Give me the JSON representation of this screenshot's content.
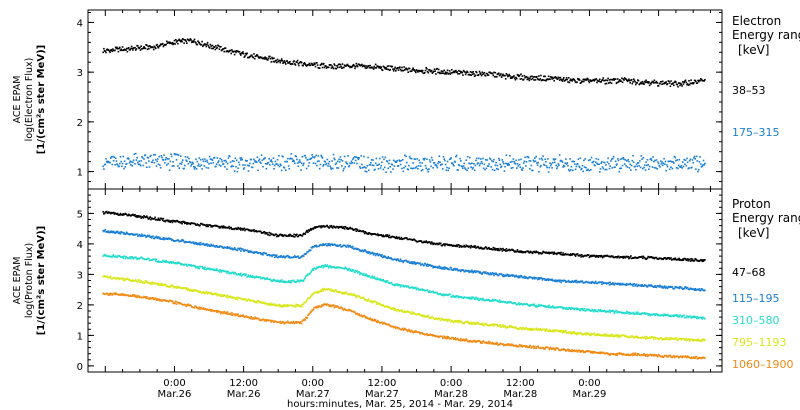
{
  "chart_data": [
    {
      "type": "scatter",
      "panel": "electron",
      "ylabel_lines": [
        "ACE EPAM",
        "log(Electron Flux)",
        "[1/(cm²s ster MeV)]"
      ],
      "legend_title_lines": [
        "Electron",
        "Energy range"
      ],
      "legend_unit": "[keV]",
      "ylim": [
        0.65,
        4.25
      ],
      "yticks": [
        "1",
        "2",
        "3",
        "4"
      ],
      "x_range_hours": [
        -15,
        95
      ],
      "series": [
        {
          "name": "38–53",
          "color": "#000000",
          "points": [
            [
              -12,
              3.45
            ],
            [
              -8,
              3.48
            ],
            [
              -4,
              3.52
            ],
            [
              0,
              3.62
            ],
            [
              3,
              3.65
            ],
            [
              6,
              3.55
            ],
            [
              10,
              3.42
            ],
            [
              14,
              3.32
            ],
            [
              18,
              3.25
            ],
            [
              22,
              3.18
            ],
            [
              26,
              3.13
            ],
            [
              30,
              3.14
            ],
            [
              34,
              3.12
            ],
            [
              38,
              3.08
            ],
            [
              42,
              3.05
            ],
            [
              46,
              3.03
            ],
            [
              50,
              3.0
            ],
            [
              54,
              2.98
            ],
            [
              58,
              2.93
            ],
            [
              62,
              2.9
            ],
            [
              66,
              2.88
            ],
            [
              70,
              2.84
            ],
            [
              74,
              2.84
            ],
            [
              78,
              2.85
            ],
            [
              80,
              2.82
            ],
            [
              84,
              2.8
            ],
            [
              88,
              2.78
            ],
            [
              90,
              2.82
            ],
            [
              92,
              2.85
            ]
          ]
        },
        {
          "name": "175–315",
          "color": "#1a7fd4",
          "points": [
            [
              -12,
              1.2
            ],
            [
              0,
              1.22
            ],
            [
              12,
              1.18
            ],
            [
              24,
              1.2
            ],
            [
              36,
              1.17
            ],
            [
              48,
              1.18
            ],
            [
              60,
              1.17
            ],
            [
              72,
              1.17
            ],
            [
              84,
              1.18
            ],
            [
              92,
              1.17
            ]
          ]
        }
      ]
    },
    {
      "type": "scatter",
      "panel": "proton",
      "ylabel_lines": [
        "ACE EPAM",
        "log(Proton Flux)",
        "[1/(cm²s ster MeV)]"
      ],
      "legend_title_lines": [
        "Proton",
        "Energy range"
      ],
      "legend_unit": "[keV]",
      "ylim": [
        -0.2,
        5.8
      ],
      "yticks": [
        "0",
        "1",
        "2",
        "3",
        "4",
        "5"
      ],
      "x_range_hours": [
        -15,
        95
      ],
      "series": [
        {
          "name": "47–68",
          "color": "#000000",
          "points": [
            [
              -12,
              5.05
            ],
            [
              -6,
              4.92
            ],
            [
              0,
              4.75
            ],
            [
              6,
              4.62
            ],
            [
              12,
              4.5
            ],
            [
              18,
              4.3
            ],
            [
              22,
              4.3
            ],
            [
              24,
              4.55
            ],
            [
              26,
              4.6
            ],
            [
              30,
              4.55
            ],
            [
              34,
              4.35
            ],
            [
              38,
              4.25
            ],
            [
              42,
              4.12
            ],
            [
              46,
              4.02
            ],
            [
              50,
              3.95
            ],
            [
              56,
              3.85
            ],
            [
              60,
              3.78
            ],
            [
              66,
              3.72
            ],
            [
              70,
              3.65
            ],
            [
              76,
              3.6
            ],
            [
              82,
              3.57
            ],
            [
              88,
              3.52
            ],
            [
              92,
              3.47
            ]
          ]
        },
        {
          "name": "115–195",
          "color": "#1a7fd4",
          "points": [
            [
              -12,
              4.45
            ],
            [
              -6,
              4.3
            ],
            [
              0,
              4.15
            ],
            [
              6,
              3.98
            ],
            [
              12,
              3.82
            ],
            [
              18,
              3.6
            ],
            [
              22,
              3.6
            ],
            [
              24,
              3.95
            ],
            [
              26,
              4.0
            ],
            [
              30,
              3.95
            ],
            [
              34,
              3.72
            ],
            [
              38,
              3.52
            ],
            [
              42,
              3.38
            ],
            [
              46,
              3.25
            ],
            [
              50,
              3.15
            ],
            [
              56,
              3.02
            ],
            [
              60,
              2.95
            ],
            [
              66,
              2.82
            ],
            [
              70,
              2.78
            ],
            [
              76,
              2.72
            ],
            [
              82,
              2.65
            ],
            [
              88,
              2.58
            ],
            [
              92,
              2.5
            ]
          ]
        },
        {
          "name": "310–580",
          "color": "#22dccb",
          "points": [
            [
              -12,
              3.65
            ],
            [
              -6,
              3.55
            ],
            [
              0,
              3.4
            ],
            [
              6,
              3.2
            ],
            [
              12,
              3.0
            ],
            [
              18,
              2.8
            ],
            [
              22,
              2.8
            ],
            [
              24,
              3.2
            ],
            [
              26,
              3.3
            ],
            [
              30,
              3.2
            ],
            [
              34,
              2.95
            ],
            [
              38,
              2.7
            ],
            [
              42,
              2.55
            ],
            [
              46,
              2.38
            ],
            [
              50,
              2.28
            ],
            [
              56,
              2.15
            ],
            [
              60,
              2.05
            ],
            [
              66,
              1.95
            ],
            [
              70,
              1.88
            ],
            [
              76,
              1.8
            ],
            [
              82,
              1.72
            ],
            [
              88,
              1.65
            ],
            [
              92,
              1.58
            ]
          ]
        },
        {
          "name": "795–1193",
          "color": "#d8e61a",
          "points": [
            [
              -12,
              2.95
            ],
            [
              -6,
              2.8
            ],
            [
              0,
              2.62
            ],
            [
              6,
              2.4
            ],
            [
              12,
              2.2
            ],
            [
              18,
              2.0
            ],
            [
              22,
              2.0
            ],
            [
              24,
              2.4
            ],
            [
              26,
              2.55
            ],
            [
              30,
              2.4
            ],
            [
              34,
              2.15
            ],
            [
              38,
              1.88
            ],
            [
              42,
              1.72
            ],
            [
              46,
              1.55
            ],
            [
              50,
              1.45
            ],
            [
              56,
              1.35
            ],
            [
              60,
              1.25
            ],
            [
              66,
              1.18
            ],
            [
              70,
              1.08
            ],
            [
              76,
              1.02
            ],
            [
              82,
              0.95
            ],
            [
              88,
              0.9
            ],
            [
              92,
              0.85
            ]
          ]
        },
        {
          "name": "1060–1900",
          "color": "#f08a14",
          "points": [
            [
              -12,
              2.4
            ],
            [
              -6,
              2.3
            ],
            [
              0,
              2.1
            ],
            [
              6,
              1.85
            ],
            [
              12,
              1.65
            ],
            [
              18,
              1.45
            ],
            [
              22,
              1.45
            ],
            [
              24,
              1.9
            ],
            [
              26,
              2.05
            ],
            [
              30,
              1.85
            ],
            [
              34,
              1.55
            ],
            [
              38,
              1.3
            ],
            [
              42,
              1.12
            ],
            [
              46,
              0.98
            ],
            [
              50,
              0.88
            ],
            [
              56,
              0.75
            ],
            [
              60,
              0.68
            ],
            [
              66,
              0.58
            ],
            [
              70,
              0.5
            ],
            [
              76,
              0.42
            ],
            [
              82,
              0.38
            ],
            [
              88,
              0.32
            ],
            [
              92,
              0.27
            ]
          ]
        }
      ]
    }
  ],
  "x_axis": {
    "ticks": [
      {
        "hour": 0,
        "time": "0:00",
        "date": "Mar.26"
      },
      {
        "hour": 12,
        "time": "12:00",
        "date": "Mar.26"
      },
      {
        "hour": 24,
        "time": "0:00",
        "date": "Mar.27"
      },
      {
        "hour": 36,
        "time": "12:00",
        "date": "Mar.27"
      },
      {
        "hour": 48,
        "time": "0:00",
        "date": "Mar.28"
      },
      {
        "hour": 60,
        "time": "12:00",
        "date": "Mar.28"
      },
      {
        "hour": 72,
        "time": "0:00",
        "date": "Mar.29"
      }
    ],
    "label": "hours:minutes, Mar. 25, 2014 - Mar. 29, 2014"
  }
}
